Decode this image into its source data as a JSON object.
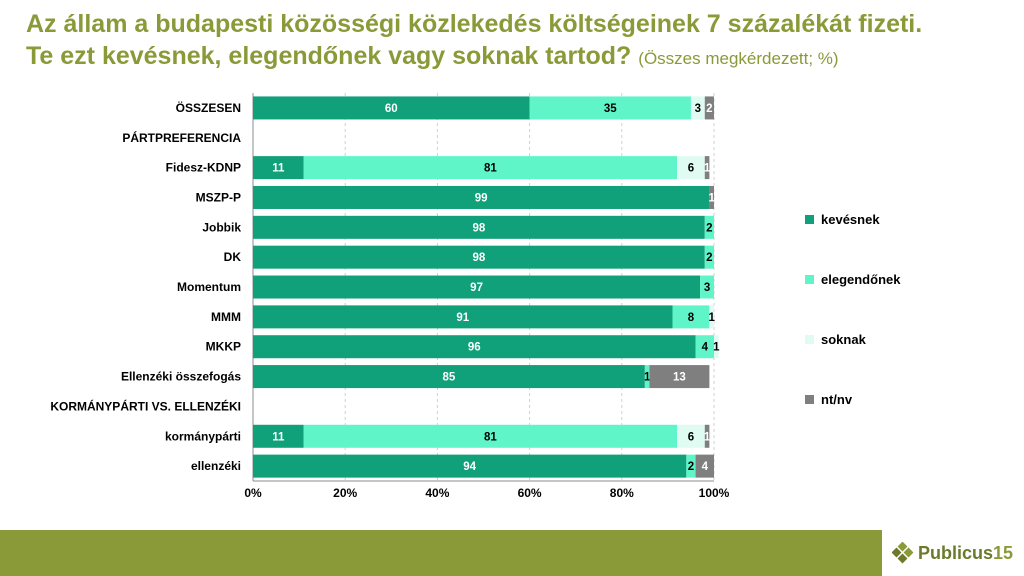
{
  "title_line1": "Az állam a budapesti közösségi közlekedés költségeinek 7 százalékát fizeti.",
  "title_line2": "Te ezt kevésnek, elegendőnek vagy soknak tartod?",
  "title_note": "(Összes megkérdezett; %)",
  "logo": {
    "text": "Publicus",
    "num": "15"
  },
  "colors": {
    "kevesnek": "#10a07a",
    "elegendonek": "#5ff5c8",
    "soknak": "#dffbf2",
    "ntnv": "#7f7f7f",
    "brand": "#8a9a38"
  },
  "chart_data": {
    "type": "bar",
    "orientation": "horizontal-stacked-100",
    "xlim": [
      0,
      100
    ],
    "xticks": [
      "0%",
      "20%",
      "40%",
      "60%",
      "80%",
      "100%"
    ],
    "legend_position": "right",
    "series": [
      {
        "name": "kevésnek",
        "color": "#10a07a"
      },
      {
        "name": "elegendőnek",
        "color": "#5ff5c8"
      },
      {
        "name": "soknak",
        "color": "#dffbf2"
      },
      {
        "name": "nt/nv",
        "color": "#7f7f7f"
      }
    ],
    "rows": [
      {
        "label": "ÖSSZESEN",
        "values": [
          60,
          35,
          3,
          2
        ]
      },
      {
        "label": "PÁRTPREFERENCIA",
        "header": true
      },
      {
        "label": "Fidesz-KDNP",
        "values": [
          11,
          81,
          6,
          1
        ]
      },
      {
        "label": "MSZP-P",
        "values": [
          99,
          0,
          0,
          1
        ]
      },
      {
        "label": "Jobbik",
        "values": [
          98,
          2,
          0,
          0
        ]
      },
      {
        "label": "DK",
        "values": [
          98,
          2,
          0,
          0
        ]
      },
      {
        "label": "Momentum",
        "values": [
          97,
          3,
          0,
          0
        ]
      },
      {
        "label": "MMM",
        "values": [
          91,
          8,
          1,
          0
        ]
      },
      {
        "label": "MKKP",
        "values": [
          96,
          4,
          1,
          0
        ]
      },
      {
        "label": "Ellenzéki összefogás",
        "values": [
          85,
          1,
          0,
          13
        ]
      },
      {
        "label": "KORMÁNYPÁRTI VS. ELLENZÉKI",
        "header": true
      },
      {
        "label": "kormánypárti",
        "values": [
          11,
          81,
          6,
          1
        ]
      },
      {
        "label": "ellenzéki",
        "values": [
          94,
          2,
          0,
          4
        ]
      }
    ]
  }
}
